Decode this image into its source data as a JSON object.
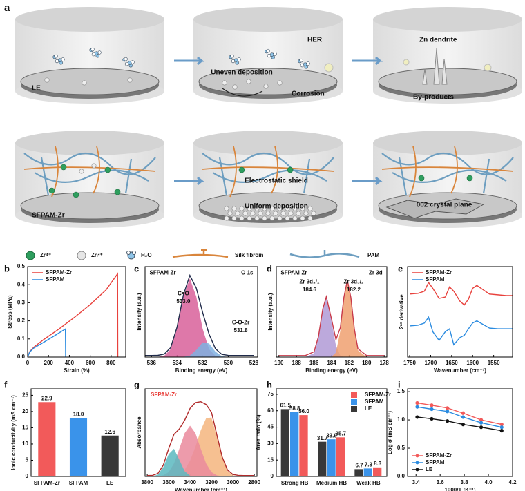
{
  "panel_a": {
    "label": "a",
    "le": "LE",
    "uneven": "Uneven deposition",
    "her": "HER",
    "corrosion": "Corrosion",
    "dendrite": "Zn dendrite",
    "byproducts": "By-products",
    "sfpam_zr": "SFPAM-Zr",
    "shield": "Electrostatic shield",
    "uniform": "Uniform deposition",
    "plane": "002 crystal plane"
  },
  "legend": [
    "Zr⁴⁺",
    "Zn²⁺",
    "H₂O",
    "Silk fibroin",
    "PAM"
  ],
  "chart_data": [
    {
      "panel": "b",
      "type": "line",
      "xlabel": "Strain (%)",
      "ylabel": "Stress (MPa)",
      "xlim": [
        0,
        940
      ],
      "xticks": [
        0,
        200,
        400,
        600,
        800
      ],
      "ylim": [
        0,
        0.5
      ],
      "yticks": [
        {
          "value": 0,
          "label": "0.0"
        },
        0.1,
        0.2,
        0.3,
        0.4,
        0.5
      ],
      "legend": "upper-left",
      "series": [
        {
          "name": "SFPAM-Zr",
          "color": "#e8413c",
          "x": [
            0,
            20,
            60,
            150,
            300,
            450,
            600,
            750,
            862,
            864
          ],
          "values": [
            0,
            0.03,
            0.055,
            0.095,
            0.155,
            0.22,
            0.29,
            0.37,
            0.46,
            0
          ]
        },
        {
          "name": "SFPAM",
          "color": "#2a8be0",
          "x": [
            0,
            20,
            60,
            150,
            250,
            362,
            364
          ],
          "values": [
            0,
            0.028,
            0.05,
            0.08,
            0.115,
            0.155,
            0
          ]
        }
      ]
    },
    {
      "panel": "c",
      "type": "line",
      "xlabel": "Binding energy (eV)",
      "ylabel": "Intensity (a.u.)",
      "xlim": [
        536.5,
        527.7
      ],
      "xticks": [
        536,
        534,
        532,
        530,
        528
      ],
      "ylim": [
        0,
        1.15
      ],
      "annotations": [
        "SFPAM-Zr",
        "O 1s",
        "C=O",
        "533.0",
        "C-O-Zr",
        "531.8"
      ],
      "x": [
        536.5,
        536,
        535.5,
        535,
        534.5,
        534,
        533.5,
        533,
        532.5,
        532,
        531.5,
        531,
        530.5,
        530,
        529,
        528
      ],
      "series": [
        {
          "fill": "#d8609a",
          "values": [
            0,
            0,
            0.002,
            0.017,
            0.1,
            0.36,
            0.77,
            1,
            0.77,
            0.36,
            0.1,
            0.017,
            0.002,
            0,
            0,
            0
          ]
        },
        {
          "fill": "#7fb0e0",
          "values": [
            0,
            0,
            0,
            0,
            0,
            0,
            0.002,
            0.019,
            0.089,
            0.187,
            0.172,
            0.069,
            0.012,
            0.001,
            0,
            0
          ]
        },
        {
          "color": "#1f2a4a",
          "values": [
            0.02,
            0.02,
            0.022,
            0.037,
            0.12,
            0.38,
            0.792,
            1.039,
            0.879,
            0.567,
            0.292,
            0.106,
            0.034,
            0.021,
            0.02,
            0.02
          ]
        }
      ]
    },
    {
      "panel": "d",
      "type": "line",
      "xlabel": "Binding energy (eV)",
      "ylabel": "Intensity (a.u.)",
      "xlim": [
        190.3,
        177.7
      ],
      "xticks": [
        190,
        188,
        186,
        184,
        182,
        180,
        178
      ],
      "ylim": [
        0,
        1.2
      ],
      "annotations": [
        "SFPAM-Zr",
        "Zr 3d",
        "Zr 3d₃/₂",
        "184.6",
        "Zr 3d₅/₂",
        "182.2"
      ],
      "x": [
        190,
        189,
        188,
        187,
        186,
        185.5,
        185,
        184.6,
        184,
        183.5,
        183,
        182.6,
        182.2,
        181.8,
        181.4,
        181,
        180,
        179,
        178
      ],
      "series": [
        {
          "fill": "#b09ad6",
          "values": [
            0,
            0,
            0,
            0,
            0.05,
            0.25,
            0.62,
            0.78,
            0.47,
            0.15,
            0.02,
            0.003,
            0,
            0,
            0,
            0,
            0,
            0,
            0
          ]
        },
        {
          "fill": "#f0a070",
          "values": [
            0,
            0,
            0,
            0,
            0,
            0,
            0,
            0,
            0.005,
            0.06,
            0.35,
            0.77,
            1,
            0.77,
            0.35,
            0.09,
            0,
            0,
            0
          ]
        },
        {
          "color": "#c83a4a",
          "values": [
            0.02,
            0.02,
            0.02,
            0.02,
            0.07,
            0.27,
            0.64,
            0.8,
            0.5,
            0.23,
            0.39,
            0.79,
            1.02,
            0.79,
            0.37,
            0.11,
            0.02,
            0.02,
            0.02
          ]
        }
      ]
    },
    {
      "panel": "e",
      "type": "line",
      "xlabel": "Wavenumber (cm⁻¹)",
      "ylabel": "2ⁿᵈ derivative",
      "xlim": [
        1755,
        1505
      ],
      "xticks": [
        1750,
        1700,
        1650,
        1600,
        1550
      ],
      "ylim": [
        -0.25,
        1.0
      ],
      "legend": "upper-left",
      "x": [
        1750,
        1730,
        1715,
        1705,
        1695,
        1680,
        1665,
        1655,
        1645,
        1630,
        1620,
        1610,
        1600,
        1590,
        1575,
        1560,
        1540,
        1520,
        1505
      ],
      "series": [
        {
          "name": "SFPAM-Zr",
          "color": "#e8413c",
          "values": [
            0.62,
            0.63,
            0.66,
            0.78,
            0.7,
            0.56,
            0.58,
            0.72,
            0.66,
            0.52,
            0.47,
            0.55,
            0.7,
            0.74,
            0.68,
            0.62,
            0.61,
            0.6,
            0.6
          ]
        },
        {
          "name": "SFPAM",
          "color": "#2a8be0",
          "values": [
            0.18,
            0.19,
            0.22,
            0.3,
            0.1,
            -0.02,
            0.1,
            0.14,
            -0.08,
            0.02,
            0.05,
            0.14,
            0.22,
            0.25,
            0.2,
            0.15,
            0.14,
            0.14,
            0.14
          ]
        }
      ]
    },
    {
      "panel": "f",
      "type": "bar",
      "ylabel": "Ionic conductivity (mS cm⁻¹)",
      "ylim": [
        0,
        27
      ],
      "yticks": [
        0,
        5,
        10,
        15,
        20,
        25
      ],
      "categories": [
        "SFPAM-Zr",
        "SFPAM",
        "LE"
      ],
      "values": [
        22.9,
        18.0,
        12.6
      ],
      "value_labels": [
        "22.9",
        "18.0",
        "12.6"
      ],
      "colors": [
        "#f25a5a",
        "#3a93ea",
        "#383838"
      ]
    },
    {
      "panel": "g",
      "type": "line",
      "xlabel": "Wavenumber (cm⁻¹)",
      "ylabel": "Absorbance",
      "xlim": [
        3820,
        2775
      ],
      "xticks": [
        3800,
        3600,
        3400,
        3200,
        3000,
        2800
      ],
      "ylim": [
        0,
        0.95
      ],
      "annotations": [
        "SFPAM-Zr"
      ],
      "annotation_color": "#e8413c",
      "x": [
        3800,
        3750,
        3700,
        3650,
        3600,
        3550,
        3500,
        3450,
        3400,
        3350,
        3300,
        3250,
        3200,
        3150,
        3100,
        3050,
        3000,
        2950,
        2900,
        2850,
        2800
      ],
      "series": [
        {
          "fill": "#f5b57e",
          "values": [
            0,
            0,
            0,
            0,
            0.002,
            0.007,
            0.025,
            0.073,
            0.17,
            0.32,
            0.5,
            0.63,
            0.64,
            0.43,
            0.2,
            0.06,
            0.012,
            0.002,
            0,
            0,
            0
          ]
        },
        {
          "fill": "#ea8a9c",
          "values": [
            0,
            0,
            0.002,
            0.012,
            0.047,
            0.14,
            0.3,
            0.47,
            0.55,
            0.47,
            0.3,
            0.14,
            0.047,
            0.012,
            0.002,
            0,
            0,
            0,
            0,
            0,
            0
          ]
        },
        {
          "fill": "#5bb8c0",
          "values": [
            0,
            0.002,
            0.02,
            0.1,
            0.24,
            0.3,
            0.18,
            0.056,
            0.008,
            0,
            0,
            0,
            0,
            0,
            0,
            0,
            0,
            0,
            0,
            0,
            0
          ]
        },
        {
          "color": "#b02a2a",
          "values": [
            0.01,
            0.012,
            0.032,
            0.122,
            0.299,
            0.457,
            0.515,
            0.609,
            0.738,
            0.8,
            0.81,
            0.78,
            0.697,
            0.452,
            0.212,
            0.07,
            0.022,
            0.012,
            0.01,
            0.01,
            0.01
          ]
        }
      ]
    },
    {
      "panel": "h",
      "type": "bar",
      "ylabel": "Area ratio (%)",
      "ylim": [
        0,
        80
      ],
      "yticks": [
        0,
        15,
        30,
        45,
        60,
        75
      ],
      "legend": "upper-right",
      "categories": [
        "Strong HB",
        "Medium HB",
        "Weak HB"
      ],
      "series": [
        {
          "name": "SFPAM-Zr",
          "color": "#f25a5a",
          "values": [
            56.0,
            35.7,
            8.3
          ],
          "value_labels": [
            "56.0",
            "35.7",
            "8.3"
          ]
        },
        {
          "name": "SFPAM",
          "color": "#3a93ea",
          "values": [
            58.8,
            33.9,
            7.3
          ],
          "value_labels": [
            "58.8",
            "33.9",
            "7.3"
          ]
        },
        {
          "name": "LE",
          "color": "#383838",
          "values": [
            61.5,
            31.7,
            6.7
          ],
          "value_labels": [
            "61.5",
            "31.7",
            "6.7"
          ]
        }
      ]
    },
    {
      "panel": "i",
      "type": "line",
      "markers": true,
      "xlabel": "1000/T (K⁻¹)",
      "ylabel": "Log σ (mS cm⁻¹)",
      "xlim": [
        3.33,
        4.2
      ],
      "xticks": [
        3.4,
        3.6,
        3.8,
        {
          "value": 4,
          "label": "4.0"
        },
        4.2
      ],
      "ylim": [
        0,
        1.55
      ],
      "yticks": [
        {
          "value": 0,
          "label": "0.0"
        },
        0.5,
        {
          "value": 1,
          "label": "1.0"
        },
        1.5
      ],
      "legend": "lower-left",
      "x": [
        3.41,
        3.53,
        3.66,
        3.79,
        3.94,
        4.11
      ],
      "series": [
        {
          "name": "SFPAM-Zr",
          "color": "#f25a5a",
          "values": [
            1.3,
            1.26,
            1.21,
            1.12,
            1.0,
            0.92
          ]
        },
        {
          "name": "SFPAM",
          "color": "#2a8be0",
          "values": [
            1.23,
            1.19,
            1.15,
            1.05,
            0.95,
            0.87
          ]
        },
        {
          "name": "LE",
          "color": "#111111",
          "values": [
            1.05,
            1.02,
            0.98,
            0.92,
            0.87,
            0.81
          ]
        }
      ]
    }
  ]
}
